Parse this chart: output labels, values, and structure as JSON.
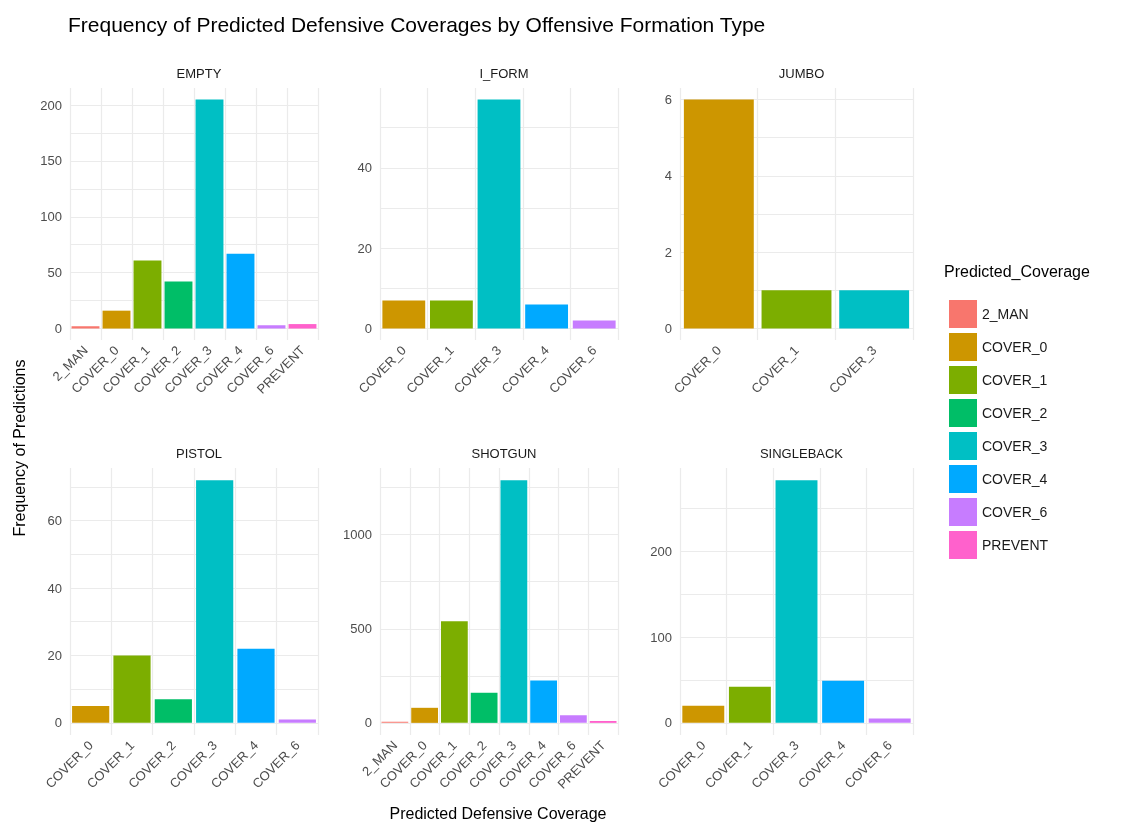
{
  "chart_data": [
    {
      "type": "bar",
      "title": "EMPTY",
      "annotations": [
        "Frequency of Predicted Defensive Coverages by Offensive Formation Type"
      ],
      "ylabel": "Frequency of Predictions",
      "categories": [
        "2_MAN",
        "COVER_0",
        "COVER_1",
        "COVER_2",
        "COVER_3",
        "COVER_4",
        "COVER_6",
        "PREVENT"
      ],
      "values": [
        2,
        16,
        61,
        42,
        205,
        67,
        3,
        4
      ],
      "colors": [
        "#f8766d",
        "#cd9600",
        "#7cae00",
        "#00be67",
        "#00bfc4",
        "#00a9ff",
        "#c77cff",
        "#ff61cc"
      ],
      "ylim": [
        -10.25,
        215.25
      ],
      "yticks": [
        0,
        {
          "value": 25,
          "label": null
        },
        50,
        {
          "value": 75,
          "label": null
        },
        100,
        {
          "value": 125,
          "label": null
        },
        150,
        {
          "value": 175,
          "label": null
        },
        200
      ],
      "grid": true
    },
    {
      "type": "bar",
      "title": "I_FORM",
      "categories": [
        "COVER_0",
        "COVER_1",
        "COVER_3",
        "COVER_4",
        "COVER_6"
      ],
      "values": [
        7,
        7,
        57,
        6,
        2
      ],
      "colors": [
        "#cd9600",
        "#7cae00",
        "#00bfc4",
        "#00a9ff",
        "#c77cff"
      ],
      "ylim": [
        -2.85,
        59.85
      ],
      "yticks": [
        0,
        {
          "value": 10,
          "label": null
        },
        20,
        {
          "value": 30,
          "label": null
        },
        40,
        {
          "value": 50,
          "label": null
        }
      ],
      "grid": true
    },
    {
      "type": "bar",
      "title": "JUMBO",
      "categories": [
        "COVER_0",
        "COVER_1",
        "COVER_3"
      ],
      "values": [
        6,
        1,
        1
      ],
      "colors": [
        "#cd9600",
        "#7cae00",
        "#00bfc4"
      ],
      "ylim": [
        -0.3,
        6.3
      ],
      "yticks": [
        0,
        {
          "value": 1,
          "label": null
        },
        2,
        {
          "value": 3,
          "label": null
        },
        4,
        {
          "value": 5,
          "label": null
        },
        6
      ],
      "grid": true
    },
    {
      "type": "bar",
      "title": "PISTOL",
      "categories": [
        "COVER_0",
        "COVER_1",
        "COVER_2",
        "COVER_3",
        "COVER_4",
        "COVER_6"
      ],
      "values": [
        5,
        20,
        7,
        72,
        22,
        1
      ],
      "colors": [
        "#cd9600",
        "#7cae00",
        "#00be67",
        "#00bfc4",
        "#00a9ff",
        "#c77cff"
      ],
      "ylim": [
        -3.6,
        75.6
      ],
      "yticks": [
        0,
        {
          "value": 10,
          "label": null
        },
        20,
        {
          "value": 30,
          "label": null
        },
        40,
        {
          "value": 50,
          "label": null
        },
        60,
        {
          "value": 70,
          "label": null
        }
      ],
      "grid": true
    },
    {
      "type": "bar",
      "title": "SHOTGUN",
      "xlabel": "Predicted Defensive Coverage",
      "legend": "right",
      "legend_title": "Predicted_Coverage",
      "stacked": true,
      "categories": [
        "2_MAN",
        "COVER_0",
        "COVER_1",
        "COVER_2",
        "COVER_3",
        "COVER_4",
        "COVER_6",
        "PREVENT"
      ],
      "series": [
        {
          "name": "2_MAN",
          "color": "#f8766d",
          "values": [
            6,
            null,
            null,
            null,
            null,
            null,
            null,
            null
          ]
        },
        {
          "name": "COVER_0",
          "color": "#cd9600",
          "values": [
            null,
            80,
            null,
            null,
            null,
            null,
            null,
            null
          ]
        },
        {
          "name": "COVER_1",
          "color": "#7cae00",
          "values": [
            null,
            null,
            540,
            null,
            null,
            null,
            null,
            null
          ]
        },
        {
          "name": "COVER_2",
          "color": "#00be67",
          "values": [
            null,
            null,
            null,
            160,
            null,
            null,
            null,
            null
          ]
        },
        {
          "name": "COVER_3",
          "color": "#00bfc4",
          "values": [
            null,
            null,
            null,
            null,
            1290,
            null,
            null,
            null
          ]
        },
        {
          "name": "COVER_4",
          "color": "#00a9ff",
          "values": [
            null,
            null,
            null,
            null,
            null,
            225,
            null,
            null
          ]
        },
        {
          "name": "COVER_6",
          "color": "#c77cff",
          "values": [
            null,
            null,
            null,
            null,
            null,
            null,
            40,
            null
          ]
        },
        {
          "name": "PREVENT",
          "color": "#ff61cc",
          "values": [
            null,
            null,
            null,
            null,
            null,
            null,
            null,
            10
          ]
        }
      ],
      "ylim": [
        -64.5,
        1354.5
      ],
      "yticks": [
        0,
        {
          "value": 250,
          "label": null
        },
        500,
        {
          "value": 750,
          "label": null
        },
        1000,
        {
          "value": 1250,
          "label": null
        }
      ],
      "grid": true
    },
    {
      "type": "bar",
      "title": "SINGLEBACK",
      "categories": [
        "COVER_0",
        "COVER_1",
        "COVER_3",
        "COVER_4",
        "COVER_6"
      ],
      "values": [
        20,
        42,
        283,
        49,
        5
      ],
      "colors": [
        "#cd9600",
        "#7cae00",
        "#00bfc4",
        "#00a9ff",
        "#c77cff"
      ],
      "ylim": [
        -14.15,
        297.15
      ],
      "yticks": [
        0,
        {
          "value": 50,
          "label": null
        },
        100,
        {
          "value": 150,
          "label": null
        },
        200,
        {
          "value": 250,
          "label": null
        }
      ],
      "grid": true
    }
  ]
}
